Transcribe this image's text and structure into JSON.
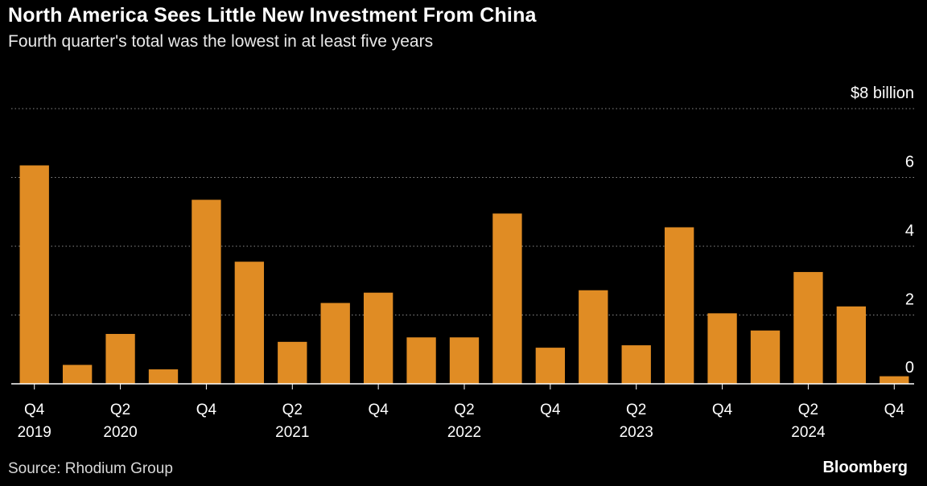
{
  "header": {
    "title": "North America Sees Little New Investment From China",
    "subtitle": "Fourth quarter's total was the lowest in at least five years"
  },
  "footer": {
    "source": "Source: Rhodium Group",
    "brand": "Bloomberg"
  },
  "colors": {
    "bar": "#E08C24",
    "grid": "#8a8a8a",
    "text": "#ffffff",
    "background": "#000000"
  },
  "chart_data": {
    "type": "bar",
    "title": "North America Sees Little New Investment From China",
    "subtitle": "Fourth quarter's total was the lowest in at least five years",
    "xlabel": "",
    "ylabel": "",
    "unit": "$ billion",
    "categories": [
      "Q4 2019",
      "Q1 2020",
      "Q2 2020",
      "Q3 2020",
      "Q4 2020",
      "Q1 2021",
      "Q2 2021",
      "Q3 2021",
      "Q4 2021",
      "Q1 2022",
      "Q2 2022",
      "Q3 2022",
      "Q4 2022",
      "Q1 2023",
      "Q2 2023",
      "Q3 2023",
      "Q4 2023",
      "Q1 2024",
      "Q2 2024",
      "Q3 2024",
      "Q4 2024"
    ],
    "values": [
      6.35,
      0.55,
      1.45,
      0.42,
      5.35,
      3.55,
      1.22,
      2.35,
      2.65,
      1.35,
      1.35,
      4.95,
      1.05,
      2.72,
      1.12,
      4.55,
      2.05,
      1.55,
      3.25,
      2.25,
      0.22
    ],
    "series": [
      {
        "values": [
          6.35,
          0.55,
          1.45,
          0.42,
          5.35,
          3.55,
          1.22,
          2.35,
          2.65,
          1.35,
          1.35,
          4.95,
          1.05,
          2.72,
          1.12,
          4.55,
          2.05,
          1.55,
          3.25,
          2.25,
          0.22
        ]
      }
    ],
    "ylim": [
      0,
      8
    ],
    "yticks": [
      {
        "value": 8,
        "label": "$8 billion"
      },
      {
        "value": 6,
        "label": "6"
      },
      {
        "value": 4,
        "label": "4"
      },
      {
        "value": 2,
        "label": "2"
      },
      {
        "value": 0,
        "label": "0"
      }
    ],
    "xtick_labels": [
      {
        "index": 0,
        "quarter": "Q4",
        "year": "2019"
      },
      {
        "index": 2,
        "quarter": "Q2",
        "year": "2020"
      },
      {
        "index": 4,
        "quarter": "Q4",
        "year": ""
      },
      {
        "index": 6,
        "quarter": "Q2",
        "year": "2021"
      },
      {
        "index": 8,
        "quarter": "Q4",
        "year": ""
      },
      {
        "index": 10,
        "quarter": "Q2",
        "year": "2022"
      },
      {
        "index": 12,
        "quarter": "Q4",
        "year": ""
      },
      {
        "index": 14,
        "quarter": "Q2",
        "year": "2023"
      },
      {
        "index": 16,
        "quarter": "Q4",
        "year": ""
      },
      {
        "index": 18,
        "quarter": "Q2",
        "year": "2024"
      },
      {
        "index": 20,
        "quarter": "Q4",
        "year": ""
      }
    ],
    "grid": true,
    "legend": "none"
  }
}
